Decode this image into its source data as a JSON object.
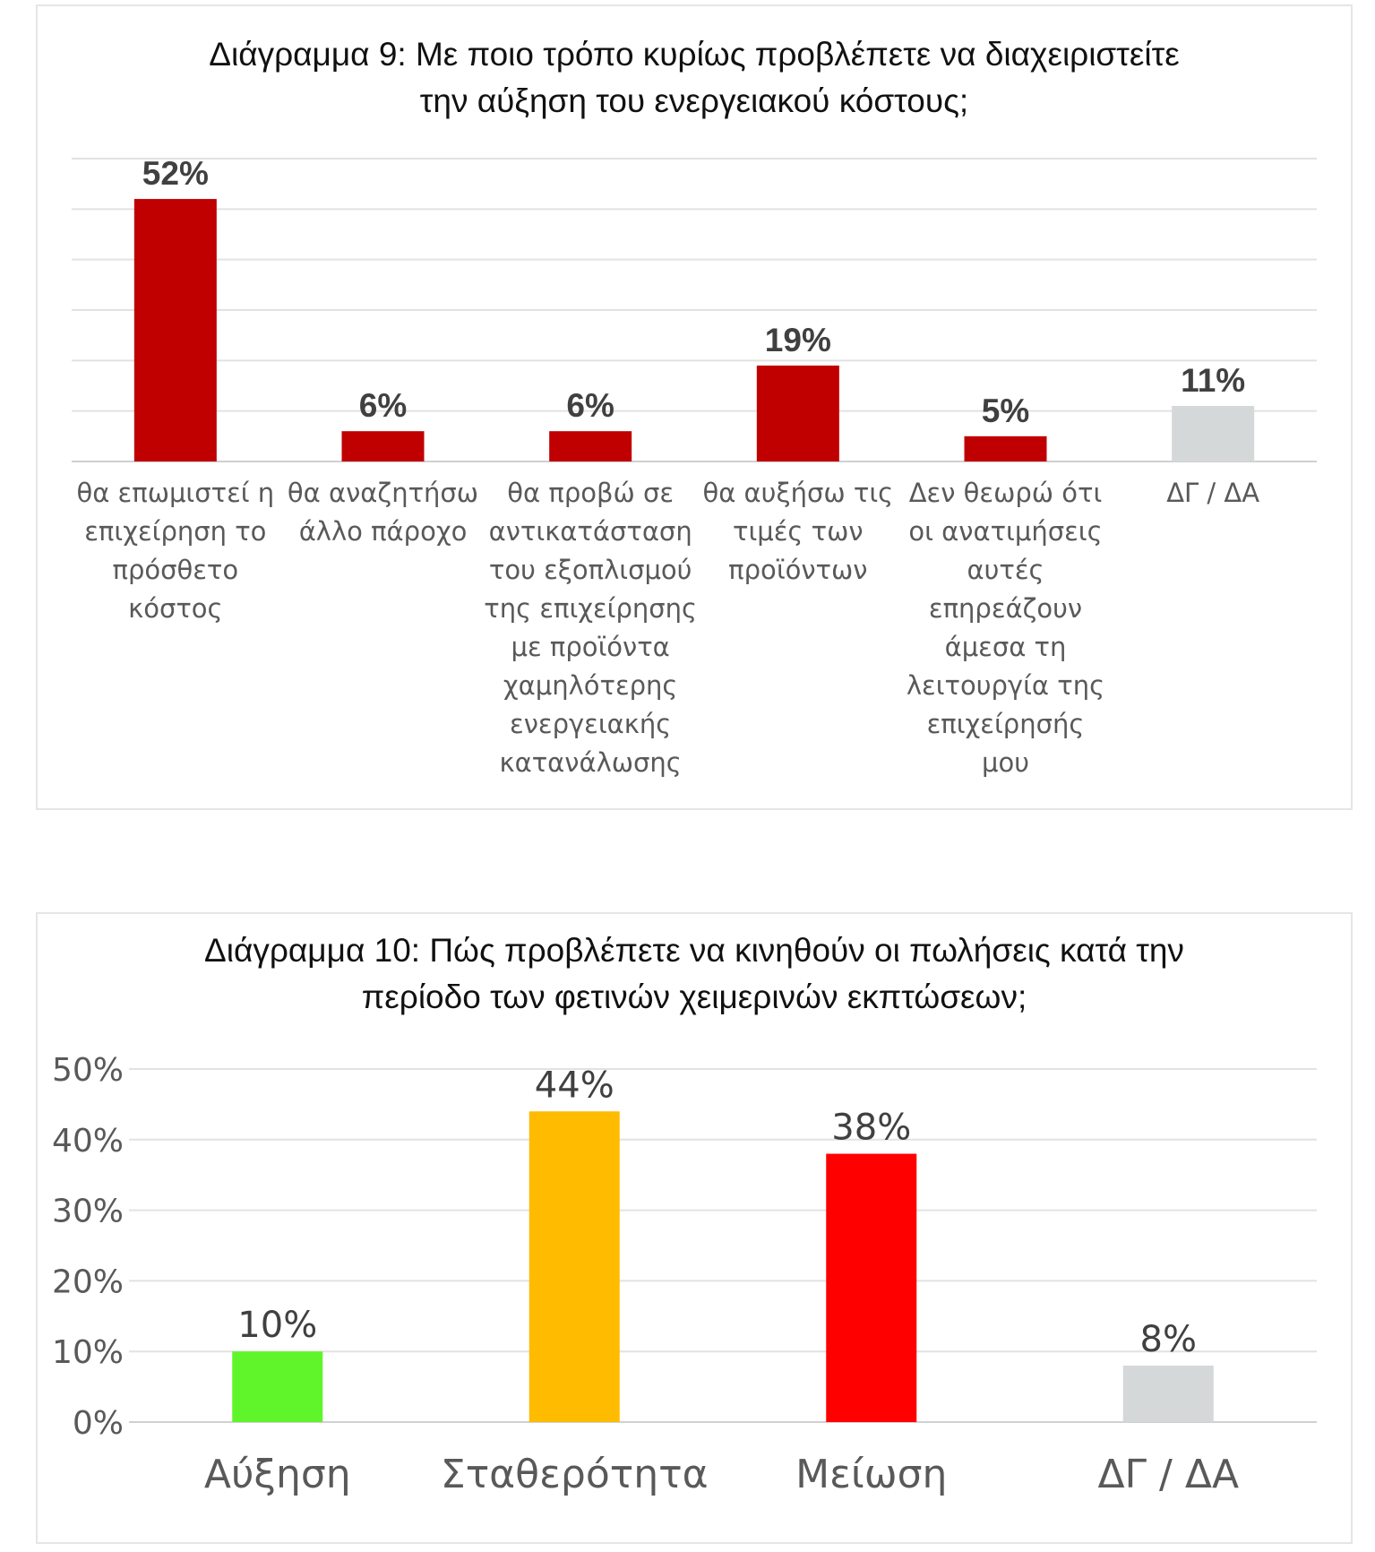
{
  "charts": [
    {
      "title_line1": "Διάγραμμα 9: Με ποιο τρόπο κυρίως προβλέπετε να  διαχειριστείτε",
      "title_line2": "την αύξηση του ενεργειακού κόστους;"
    },
    {
      "title_line1": "Διάγραμμα 10: Πώς προβλέπετε να κινηθούν οι πωλήσεις κατά την",
      "title_line2": "περίοδο των φετινών χειμερινών εκπτώσεων;"
    }
  ],
  "chart_data": [
    {
      "type": "bar",
      "title": "Διάγραμμα 9: Με ποιο τρόπο κυρίως προβλέπετε να  διαχειριστείτε την αύξηση του ενεργειακού κόστους;",
      "categories": [
        [
          "θα επωμιστεί η",
          "επιχείρηση το",
          "πρόσθετο",
          "κόστος"
        ],
        [
          "θα αναζητήσω",
          "άλλο πάροχο"
        ],
        [
          "θα προβώ σε",
          "αντικατάσταση",
          "του εξοπλισμού",
          "της επιχείρησης",
          "με προϊόντα",
          "χαμηλότερης",
          "ενεργειακής",
          "κατανάλωσης"
        ],
        [
          "θα αυξήσω τις",
          "τιμές των",
          "προϊόντων"
        ],
        [
          "Δεν θεωρώ ότι",
          "οι ανατιμήσεις",
          "αυτές",
          "επηρεάζουν",
          "άμεσα τη",
          "λειτουργία της",
          "επιχείρησής",
          "μου"
        ],
        [
          "ΔΓ / ΔΑ"
        ]
      ],
      "values": [
        52,
        6,
        6,
        19,
        5,
        11
      ],
      "value_labels": [
        "52%",
        "6%",
        "6%",
        "19%",
        "5%",
        "11%"
      ],
      "colors": [
        "#c00000",
        "#c00000",
        "#c00000",
        "#c00000",
        "#c00000",
        "#d5d8d8"
      ],
      "ylim": [
        0,
        60
      ],
      "y_axis_visible": false,
      "grid": true
    },
    {
      "type": "bar",
      "title": "Διάγραμμα 10: Πώς προβλέπετε να κινηθούν οι πωλήσεις κατά την περίοδο των φετινών χειμερινών εκπτώσεων;",
      "categories": [
        "Αύξηση",
        "Σταθερότητα",
        "Μείωση",
        "ΔΓ / ΔΑ"
      ],
      "values": [
        10,
        44,
        38,
        8
      ],
      "value_labels": [
        "10%",
        "44%",
        "38%",
        "8%"
      ],
      "colors": [
        "#5ff52a",
        "#ffbb00",
        "#ff0000",
        "#d5d8d8"
      ],
      "ylim": [
        0,
        50
      ],
      "yticks": [
        "0%",
        "10%",
        "20%",
        "30%",
        "40%",
        "50%"
      ],
      "grid": true
    }
  ]
}
